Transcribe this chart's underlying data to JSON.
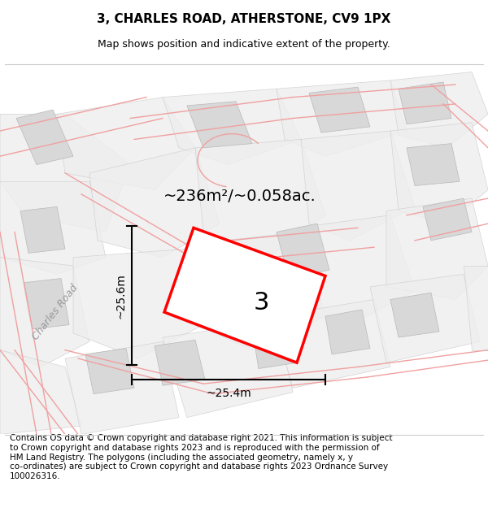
{
  "title": "3, CHARLES ROAD, ATHERSTONE, CV9 1PX",
  "subtitle": "Map shows position and indicative extent of the property.",
  "area_text": "~236m²/~0.058ac.",
  "label_number": "3",
  "dim_width": "~25.4m",
  "dim_height": "~25.6m",
  "road_label": "Charles Road",
  "footer": "Contains OS data © Crown copyright and database right 2021. This information is subject\nto Crown copyright and database rights 2023 and is reproduced with the permission of\nHM Land Registry. The polygons (including the associated geometry, namely x, y\nco-ordinates) are subject to Crown copyright and database rights 2023 Ordnance Survey\n100026316.",
  "bg_color": "#ffffff",
  "map_bg": "#f7f7f7",
  "plot_color": "#ff0000",
  "building_color": "#d8d8d8",
  "road_line_color": "#f0a0a0",
  "parcel_color": "#eeeeee",
  "title_fontsize": 11,
  "subtitle_fontsize": 9,
  "footer_fontsize": 7.5,
  "road_label_color": "#999999"
}
